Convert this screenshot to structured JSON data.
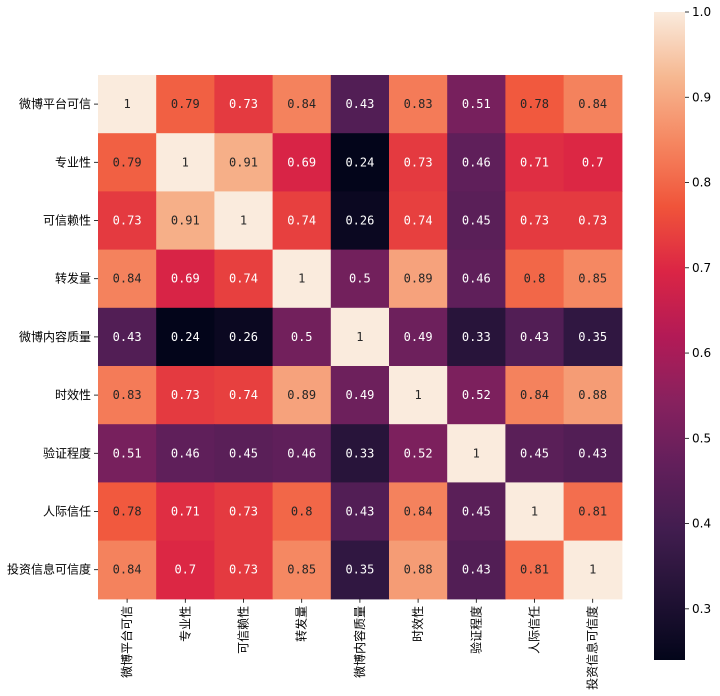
{
  "chart_data": {
    "type": "heatmap",
    "title": "",
    "xlabel": "",
    "ylabel": "",
    "labels": [
      "微博平台可信",
      "专业性",
      "可信赖性",
      "转发量",
      "微博内容质量",
      "时效性",
      "验证程度",
      "人际信任",
      "投资信息可信度"
    ],
    "values": [
      [
        1,
        0.79,
        0.73,
        0.84,
        0.43,
        0.83,
        0.51,
        0.78,
        0.84
      ],
      [
        0.79,
        1,
        0.91,
        0.69,
        0.24,
        0.73,
        0.46,
        0.71,
        0.7
      ],
      [
        0.73,
        0.91,
        1,
        0.74,
        0.26,
        0.74,
        0.45,
        0.73,
        0.73
      ],
      [
        0.84,
        0.69,
        0.74,
        1,
        0.5,
        0.89,
        0.46,
        0.8,
        0.85
      ],
      [
        0.43,
        0.24,
        0.26,
        0.5,
        1,
        0.49,
        0.33,
        0.43,
        0.35
      ],
      [
        0.83,
        0.73,
        0.74,
        0.89,
        0.49,
        1,
        0.52,
        0.84,
        0.88
      ],
      [
        0.51,
        0.46,
        0.45,
        0.46,
        0.33,
        0.52,
        1,
        0.45,
        0.43
      ],
      [
        0.78,
        0.71,
        0.73,
        0.8,
        0.43,
        0.84,
        0.45,
        1,
        0.81
      ],
      [
        0.84,
        0.7,
        0.73,
        0.85,
        0.35,
        0.88,
        0.43,
        0.81,
        1
      ]
    ],
    "display_values": [
      [
        "1",
        "0.79",
        "0.73",
        "0.84",
        "0.43",
        "0.83",
        "0.51",
        "0.78",
        "0.84"
      ],
      [
        "0.79",
        "1",
        "0.91",
        "0.69",
        "0.24",
        "0.73",
        "0.46",
        "0.71",
        "0.7"
      ],
      [
        "0.73",
        "0.91",
        "1",
        "0.74",
        "0.26",
        "0.74",
        "0.45",
        "0.73",
        "0.73"
      ],
      [
        "0.84",
        "0.69",
        "0.74",
        "1",
        "0.5",
        "0.89",
        "0.46",
        "0.8",
        "0.85"
      ],
      [
        "0.43",
        "0.24",
        "0.26",
        "0.5",
        "1",
        "0.49",
        "0.33",
        "0.43",
        "0.35"
      ],
      [
        "0.83",
        "0.73",
        "0.74",
        "0.89",
        "0.49",
        "1",
        "0.52",
        "0.84",
        "0.88"
      ],
      [
        "0.51",
        "0.46",
        "0.45",
        "0.46",
        "0.33",
        "0.52",
        "1",
        "0.45",
        "0.43"
      ],
      [
        "0.78",
        "0.71",
        "0.73",
        "0.8",
        "0.43",
        "0.84",
        "0.45",
        "1",
        "0.81"
      ],
      [
        "0.84",
        "0.7",
        "0.73",
        "0.85",
        "0.35",
        "0.88",
        "0.43",
        "0.81",
        "1"
      ]
    ],
    "colorbar": {
      "vmin": 0.24,
      "vmax": 1.0,
      "ticks": [
        0.3,
        0.4,
        0.5,
        0.6,
        0.7,
        0.8,
        0.9,
        1.0
      ],
      "tick_labels": [
        "0.3",
        "0.4",
        "0.5",
        "0.6",
        "0.7",
        "0.8",
        "0.9",
        "1.0"
      ],
      "colormap": "rocket"
    }
  }
}
